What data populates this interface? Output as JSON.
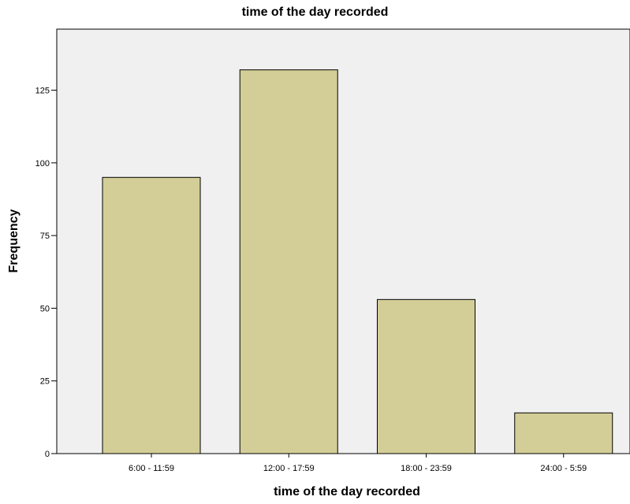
{
  "chart_data": {
    "type": "bar",
    "title": "time of the day recorded",
    "xlabel": "time of the day recorded",
    "ylabel": "Frequency",
    "categories": [
      "6:00 - 11:59",
      "12:00 - 17:59",
      "18:00 - 23:59",
      "24:00 - 5:59"
    ],
    "values": [
      95,
      132,
      53,
      14
    ],
    "ylim": [
      0,
      146
    ],
    "yticks": [
      0,
      25,
      50,
      75,
      100,
      125
    ],
    "grid": false,
    "colors": {
      "plot_background": "#f0f0f0",
      "bar_fill": "#d3ce97",
      "bar_stroke": "#000000"
    }
  }
}
